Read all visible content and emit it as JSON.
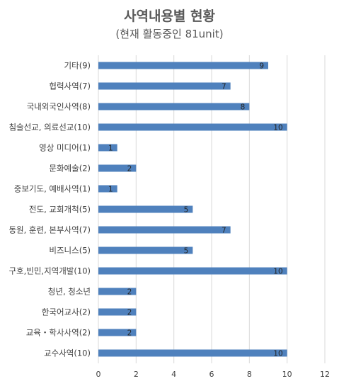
{
  "chart_data": {
    "type": "bar",
    "orientation": "horizontal",
    "title": "사역내용별 현황",
    "subtitle": "(현재 활동중인 81unit)",
    "categories": [
      "기타(9)",
      "협력사역(7)",
      "국내외국인사역(8)",
      "침술선교, 의료선교(10)",
      "영상 미디어(1)",
      "문화예술(2)",
      "중보기도, 예배사역(1)",
      "전도, 교회개척(5)",
      "동원, 훈련, 본부사역(7)",
      "비즈니스(5)",
      "구호,빈민,지역개발(10)",
      "청년, 청소년",
      "한국어교사(2)",
      "교육・학사사역(2)",
      "교수사역(10)"
    ],
    "values": [
      9,
      7,
      8,
      10,
      1,
      2,
      1,
      5,
      7,
      5,
      10,
      2,
      2,
      2,
      10
    ],
    "xlim": [
      0,
      12
    ],
    "xticks": [
      "0",
      "2",
      "4",
      "6",
      "8",
      "10",
      "12"
    ],
    "grid": "vertical",
    "bar_color": "#4f81bd",
    "grid_color": "#d9d9d9"
  }
}
